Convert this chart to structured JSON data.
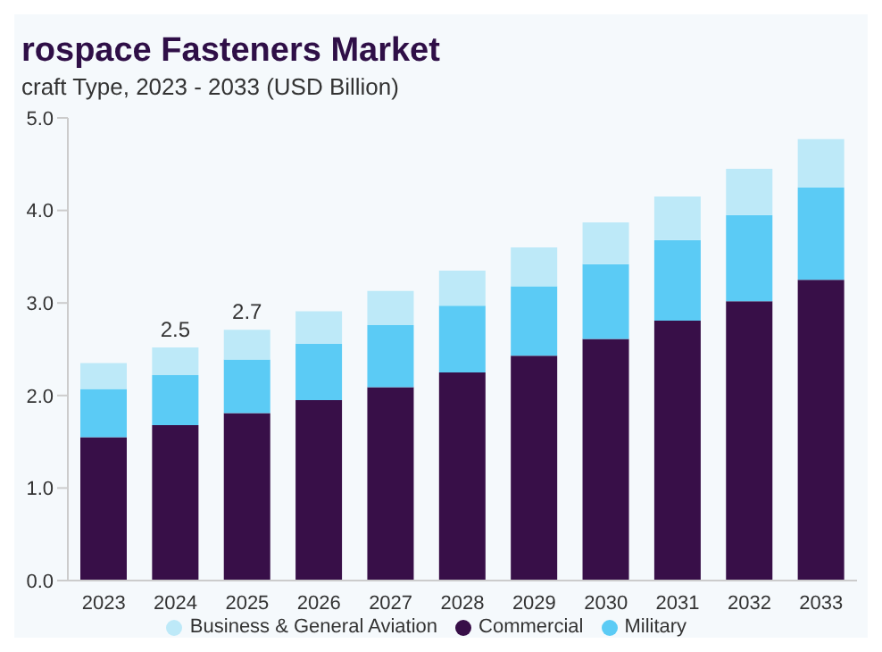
{
  "chart_data": {
    "type": "bar",
    "title": "rospace Fasteners Market",
    "subtitle": "craft Type, 2023 - 2033 (USD Billion)",
    "categories": [
      "2023",
      "2024",
      "2025",
      "2026",
      "2027",
      "2028",
      "2029",
      "2030",
      "2031",
      "2032",
      "2033"
    ],
    "stacked": true,
    "series": [
      {
        "name": "Commercial",
        "color": "#380f48",
        "values": [
          1.55,
          1.68,
          1.81,
          1.95,
          2.09,
          2.25,
          2.43,
          2.61,
          2.81,
          3.02,
          3.25
        ]
      },
      {
        "name": "Military",
        "color": "#5bcbf5",
        "values": [
          0.52,
          0.54,
          0.58,
          0.61,
          0.67,
          0.72,
          0.75,
          0.81,
          0.87,
          0.93,
          1.0
        ]
      },
      {
        "name": "Business & General Aviation",
        "color": "#bde9f8",
        "values": [
          0.28,
          0.3,
          0.32,
          0.35,
          0.37,
          0.38,
          0.42,
          0.45,
          0.47,
          0.5,
          0.52
        ]
      }
    ],
    "totals": [
      null,
      "2.5",
      "2.7",
      null,
      null,
      null,
      null,
      null,
      null,
      null,
      null
    ],
    "ylim": [
      0,
      5
    ],
    "yticks": [
      {
        "value": 0,
        "label": "0.0"
      },
      {
        "value": 1,
        "label": "1.0"
      },
      {
        "value": 2,
        "label": "2.0"
      },
      {
        "value": 3,
        "label": "3.0"
      },
      {
        "value": 4,
        "label": "4.0"
      },
      {
        "value": 5,
        "label": "5.0"
      }
    ],
    "grid": false,
    "legend": "bottom"
  }
}
